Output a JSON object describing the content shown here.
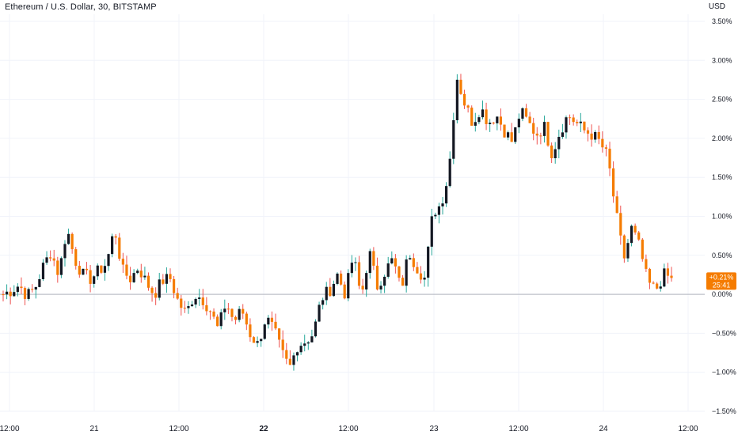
{
  "header": {
    "title": "Ethereum / U.S. Dollar, 30, BITSTAMP",
    "currency": "USD"
  },
  "last_badge": {
    "change": "+0.21%",
    "countdown": "25:41",
    "color": "#f57c00"
  },
  "colors": {
    "up": "#131722",
    "down": "#f57c00",
    "wick_up": "#26a69a",
    "wick_down": "#ef5350",
    "grid": "#f0f3fa",
    "baseline": "#b2b5be"
  },
  "chart_data": {
    "type": "candlestick",
    "title": "Ethereum / U.S. Dollar, 30, BITSTAMP",
    "ylabel": "USD",
    "y_unit": "percent change",
    "ylim": [
      -1.55,
      3.55
    ],
    "y_ticks": [
      "3.50%",
      "3.00%",
      "2.50%",
      "2.00%",
      "1.50%",
      "1.00%",
      "0.50%",
      "0.00%",
      "−0.50%",
      "−1.00%",
      "−1.50%"
    ],
    "y_tick_values": [
      3.5,
      3.0,
      2.5,
      2.0,
      1.5,
      1.0,
      0.5,
      0.0,
      -0.5,
      -1.0,
      -1.5
    ],
    "x_ticks": [
      {
        "label": "12:00",
        "bold": false
      },
      {
        "label": "21",
        "bold": false
      },
      {
        "label": "12:00",
        "bold": false
      },
      {
        "label": "22",
        "bold": true
      },
      {
        "label": "12:00",
        "bold": false
      },
      {
        "label": "23",
        "bold": false
      },
      {
        "label": "12:00",
        "bold": false
      },
      {
        "label": "24",
        "bold": false
      },
      {
        "label": "12:00",
        "bold": false
      }
    ],
    "close_path": [
      0.0,
      0.05,
      0.12,
      -0.02,
      0.08,
      0.35,
      0.55,
      0.25,
      0.85,
      0.45,
      0.25,
      0.2,
      0.3,
      0.4,
      0.85,
      0.3,
      0.2,
      0.35,
      0.15,
      0.0,
      0.18,
      0.2,
      -0.1,
      -0.25,
      0.0,
      -0.05,
      -0.2,
      -0.45,
      -0.1,
      -0.35,
      -0.2,
      -0.5,
      -0.65,
      -0.3,
      -0.45,
      -0.75,
      -0.95,
      -0.65,
      -0.6,
      -0.5,
      -0.05,
      0.05,
      0.25,
      0.0,
      0.5,
      -0.05,
      0.55,
      0.1,
      0.3,
      0.45,
      0.05,
      0.55,
      0.35,
      0.2,
      1.05,
      1.15,
      1.55,
      2.8,
      2.45,
      2.2,
      2.4,
      2.2,
      2.3,
      2.1,
      1.95,
      2.35,
      2.2,
      2.05,
      2.15,
      1.8,
      2.1,
      2.3,
      2.2,
      2.1,
      2.05,
      1.95,
      1.75,
      1.05,
      0.45,
      0.85,
      0.6,
      0.15,
      0.05,
      0.25,
      0.21
    ]
  }
}
